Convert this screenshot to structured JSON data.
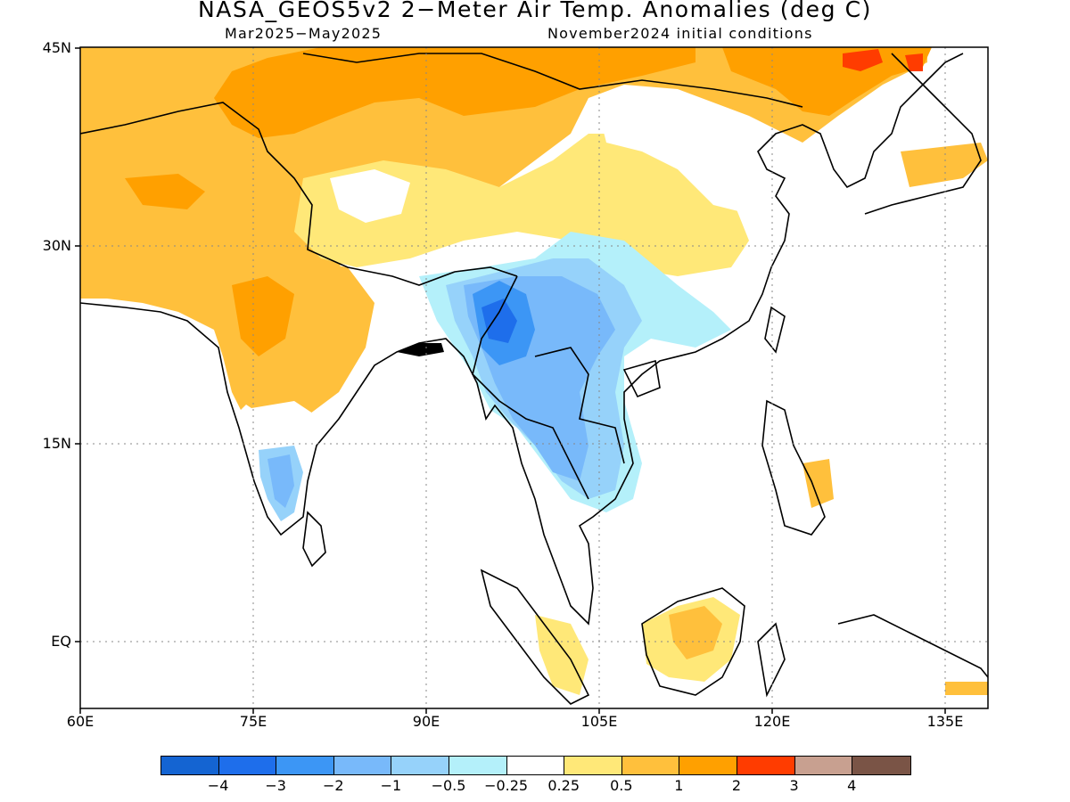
{
  "header": {
    "title": "NASA_GEOS5v2 2−Meter Air Temp. Anomalies (deg C)",
    "period": "Mar2025−May2025",
    "init": "November2024 initial conditions"
  },
  "axes": {
    "lat_labels": [
      "45N",
      "30N",
      "15N",
      "EQ"
    ],
    "lon_labels": [
      "60E",
      "75E",
      "90E",
      "105E",
      "120E",
      "135E"
    ]
  },
  "colorbar": {
    "colors": [
      "#1464d2",
      "#1e6eeb",
      "#3c96f5",
      "#78b9fa",
      "#96d2fa",
      "#b4f0fa",
      "#ffffff",
      "#ffe878",
      "#ffc03c",
      "#ffa000",
      "#ff3c00",
      "#c8a090",
      "#7a5446"
    ],
    "labels": [
      "−4",
      "−3",
      "−2",
      "−1",
      "−0.5",
      "−0.25",
      "0.25",
      "0.5",
      "1",
      "2",
      "3",
      "4"
    ]
  }
}
